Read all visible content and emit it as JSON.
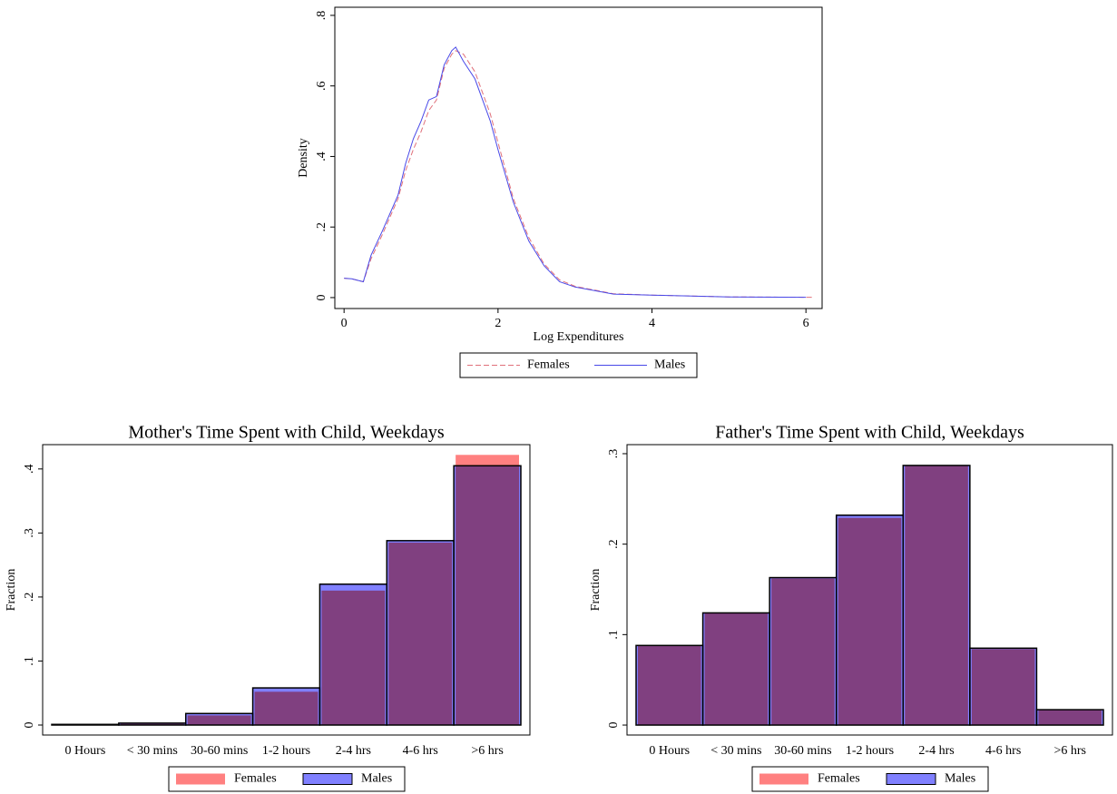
{
  "chart_data": [
    {
      "type": "line",
      "y_label": "Density",
      "x_label": "Log Expenditures",
      "x": [
        0,
        0.1,
        0.25,
        0.35,
        0.5,
        0.6,
        0.7,
        0.8,
        0.9,
        1.0,
        1.1,
        1.2,
        1.3,
        1.4,
        1.45,
        1.55,
        1.7,
        1.9,
        2.0,
        2.2,
        2.4,
        2.6,
        2.8,
        3.0,
        3.5,
        4.0,
        5.0,
        6.0,
        6.1
      ],
      "series": [
        {
          "name": "Females",
          "color": "#e0707a",
          "line_style": "dashed",
          "values": [
            0.055,
            0.053,
            0.045,
            0.11,
            0.18,
            0.23,
            0.28,
            0.36,
            0.42,
            0.47,
            0.53,
            0.56,
            0.65,
            0.69,
            0.7,
            0.69,
            0.64,
            0.52,
            0.44,
            0.28,
            0.17,
            0.095,
            0.05,
            0.032,
            0.011,
            0.007,
            0.002,
            0.001,
            0.001
          ]
        },
        {
          "name": "Males",
          "color": "#4848e8",
          "line_style": "solid",
          "values": [
            0.055,
            0.053,
            0.045,
            0.12,
            0.19,
            0.24,
            0.29,
            0.38,
            0.45,
            0.5,
            0.56,
            0.57,
            0.66,
            0.7,
            0.71,
            0.67,
            0.62,
            0.5,
            0.42,
            0.27,
            0.16,
            0.09,
            0.045,
            0.03,
            0.01,
            0.007,
            0.002,
            0.001,
            null
          ]
        }
      ],
      "xlim": [
        -0.12,
        6.21
      ],
      "xticks": [
        0,
        2,
        4,
        6
      ],
      "ylim": [
        -0.031,
        0.823
      ],
      "yticks": [
        0,
        {
          "value": 0.2,
          "label": ".2"
        },
        {
          "value": 0.4,
          "label": ".4"
        },
        {
          "value": 0.6,
          "label": ".6"
        },
        {
          "value": 0.8,
          "label": ".8"
        }
      ],
      "grid": false
    },
    {
      "type": "bar",
      "title": "Mother's Time Spent with Child, Weekdays",
      "y_label": "Fraction",
      "categories": [
        "0 Hours",
        "< 30 mins",
        "30-60 mins",
        "1-2 hours",
        "2-4 hrs",
        "4-6 hrs",
        ">6 hrs"
      ],
      "series": [
        {
          "name": "Females",
          "color": "#ff8080",
          "values": [
            0.001,
            0.002,
            0.015,
            0.052,
            0.21,
            0.285,
            0.422
          ]
        },
        {
          "name": "Males",
          "color": "#8080ff",
          "values": [
            0.001,
            0.003,
            0.018,
            0.058,
            0.22,
            0.288,
            0.405
          ]
        }
      ],
      "ylim": [
        -0.0156,
        0.438
      ],
      "yticks": [
        0,
        {
          "value": 0.1,
          "label": ".1"
        },
        {
          "value": 0.2,
          "label": ".2"
        },
        {
          "value": 0.3,
          "label": ".3"
        },
        {
          "value": 0.4,
          "label": ".4"
        }
      ],
      "grid": false
    },
    {
      "type": "bar",
      "title": "Father's Time Spent with Child, Weekdays",
      "y_label": "Fraction",
      "categories": [
        "0 Hours",
        "< 30 mins",
        "30-60 mins",
        "1-2 hours",
        "2-4 hrs",
        "4-6 hrs",
        ">6 hrs"
      ],
      "series": [
        {
          "name": "Females",
          "color": "#ff8080",
          "values": [
            0.088,
            0.124,
            0.162,
            0.229,
            0.287,
            0.084,
            0.017
          ]
        },
        {
          "name": "Males",
          "color": "#8080ff",
          "values": [
            0.088,
            0.124,
            0.163,
            0.232,
            0.287,
            0.085,
            0.017
          ]
        }
      ],
      "ylim": [
        -0.011,
        0.31
      ],
      "yticks": [
        0,
        {
          "value": 0.1,
          "label": ".1"
        },
        {
          "value": 0.2,
          "label": ".2"
        },
        {
          "value": 0.3,
          "label": ".3"
        }
      ],
      "grid": false
    }
  ]
}
